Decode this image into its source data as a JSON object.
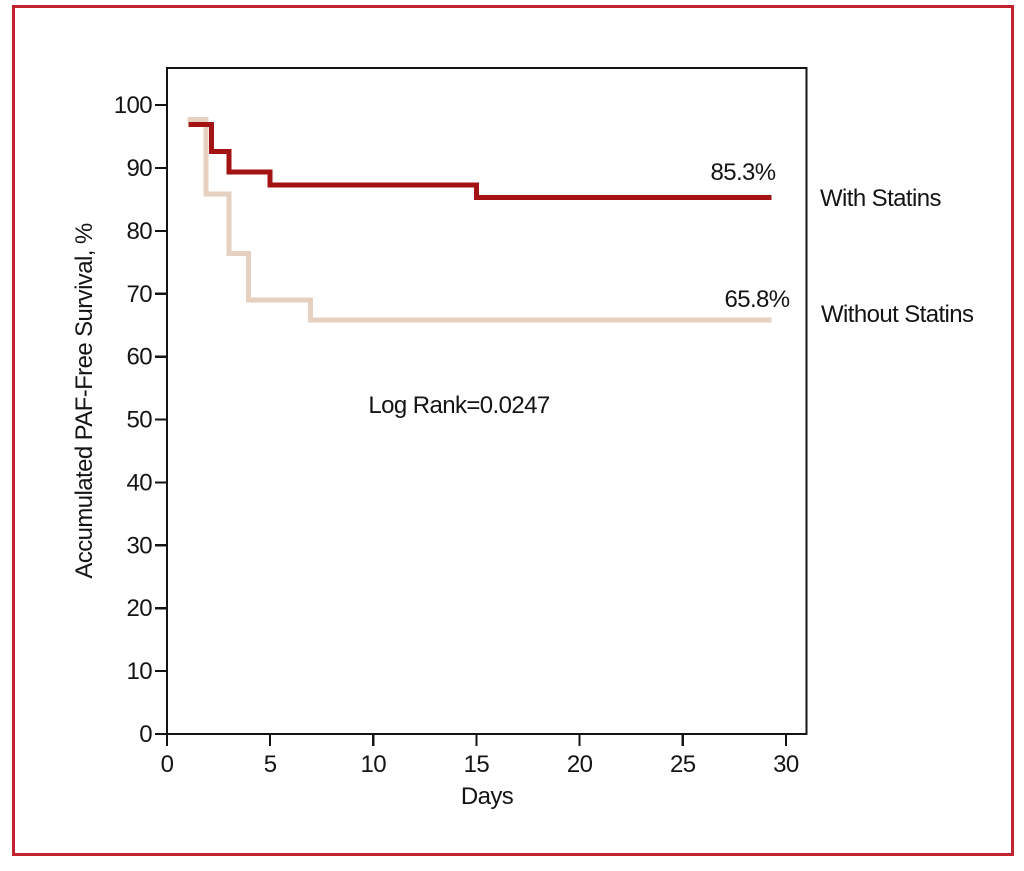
{
  "frame": {
    "border_color": "#c22130",
    "background_color": "#ffffff"
  },
  "chart_data": {
    "type": "line",
    "subtype": "kaplan-meier-step-survival",
    "title": "",
    "xlabel": "Days",
    "ylabel": "Accumulated PAF-Free Survival, %",
    "xlim": [
      0,
      31
    ],
    "ylim": [
      0,
      105.9
    ],
    "x_ticks": [
      0,
      5,
      10,
      15,
      20,
      25,
      30
    ],
    "y_ticks": [
      0,
      10,
      20,
      30,
      40,
      50,
      60,
      70,
      80,
      90,
      100
    ],
    "grid": false,
    "axis_color": "#141414",
    "legend_position": "right-of-plot",
    "annotations": [
      {
        "id": "log-rank",
        "text": "Log Rank=0.0247",
        "x": 14.1,
        "y": 52.0
      },
      {
        "id": "with-statins-final-pct",
        "text": "85.3%",
        "x": 27.9,
        "y": 89.5
      },
      {
        "id": "without-statins-final-pct",
        "text": "65.8%",
        "x": 28.6,
        "y": 69.3
      }
    ],
    "series": [
      {
        "name": "Without Statins",
        "color": "#e6d0c0",
        "line_width": 5,
        "end_x": 29.3,
        "final_value": 65.8,
        "final_value_label": "65.8%",
        "steps": [
          [
            1.0,
            97.7
          ],
          [
            1.9,
            85.9
          ],
          [
            3.0,
            76.4
          ],
          [
            3.95,
            69.0
          ],
          [
            6.95,
            65.8
          ]
        ]
      },
      {
        "name": "With Statins",
        "color": "#a31313",
        "line_width": 5,
        "end_x": 29.3,
        "final_value": 85.3,
        "final_value_label": "85.3%",
        "steps": [
          [
            1.05,
            96.9
          ],
          [
            2.15,
            92.6
          ],
          [
            3.0,
            89.4
          ],
          [
            5.0,
            87.3
          ],
          [
            15.0,
            85.3
          ]
        ]
      }
    ]
  }
}
